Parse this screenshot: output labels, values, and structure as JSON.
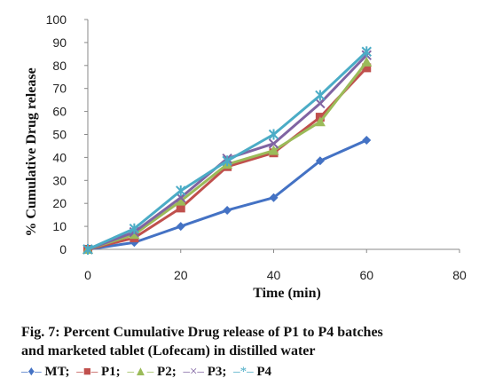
{
  "chart_data": {
    "type": "line",
    "xlabel": "Time (min)",
    "ylabel": "% Cumulative Drug  release",
    "xlim": [
      0,
      80
    ],
    "ylim": [
      0,
      100
    ],
    "xticks": [
      "0",
      "20",
      "40",
      "60",
      "80"
    ],
    "yticks": [
      "0",
      "10",
      "20",
      "30",
      "40",
      "50",
      "60",
      "70",
      "80",
      "90",
      "100"
    ],
    "grid": false,
    "x": [
      0,
      10,
      20,
      30,
      40,
      50,
      60
    ],
    "series": [
      {
        "name": "MT",
        "values": [
          0,
          3,
          10,
          17,
          22.5,
          38.5,
          47.5
        ],
        "color": "#4472C4",
        "marker": "diamond"
      },
      {
        "name": "P1",
        "values": [
          0,
          5,
          18,
          36,
          42,
          57.5,
          79
        ],
        "color": "#C0504D",
        "marker": "square"
      },
      {
        "name": "P2",
        "values": [
          0,
          6.5,
          21,
          37,
          43,
          55.5,
          81.5
        ],
        "color": "#9BBB59",
        "marker": "triangle"
      },
      {
        "name": "P3",
        "values": [
          0,
          7.5,
          22.5,
          39.5,
          46,
          63.5,
          84.5
        ],
        "color": "#8064A2",
        "marker": "x"
      },
      {
        "name": "P4",
        "values": [
          0,
          9,
          25.5,
          38.5,
          50,
          67,
          86
        ],
        "color": "#4BACC6",
        "marker": "star"
      }
    ]
  },
  "caption": {
    "line1": "Fig. 7: Percent Cumulative Drug release of P1 to P4 batches",
    "line2": "and marketed tablet (Lofecam) in distilled water"
  },
  "legend": {
    "items": [
      {
        "symbol": "–♦–",
        "label": "MT;",
        "color": "#4472C4"
      },
      {
        "symbol": "–■–",
        "label": "P1;",
        "color": "#C0504D"
      },
      {
        "symbol": "–▲–",
        "label": "P2;",
        "color": "#9BBB59"
      },
      {
        "symbol": "–×–",
        "label": "P3;",
        "color": "#8064A2"
      },
      {
        "symbol": "–*–",
        "label": "P4",
        "color": "#4BACC6"
      }
    ]
  }
}
